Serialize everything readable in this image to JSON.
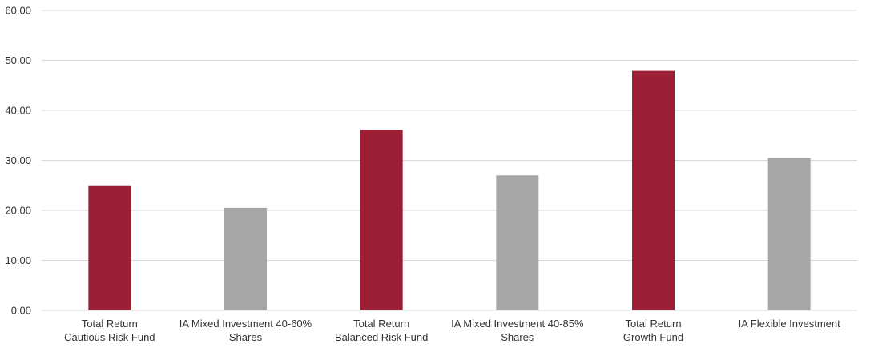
{
  "chart_data": {
    "type": "bar",
    "title": "",
    "xlabel": "",
    "ylabel": "",
    "ylim": [
      0,
      60
    ],
    "yticks": [
      "0.00",
      "10.00",
      "20.00",
      "30.00",
      "40.00",
      "50.00",
      "60.00"
    ],
    "grid": true,
    "legend": "none",
    "categories": [
      [
        "Total Return",
        "Cautious Risk Fund"
      ],
      [
        "IA Mixed Investment 40-60%",
        "Shares"
      ],
      [
        "Total Return",
        "Balanced Risk Fund"
      ],
      [
        "IA Mixed Investment 40-85%",
        "Shares"
      ],
      [
        "Total Return",
        "Growth Fund"
      ],
      [
        "IA Flexible Investment"
      ]
    ],
    "values": [
      25.0,
      20.5,
      36.1,
      27.0,
      47.9,
      30.5
    ],
    "bar_colors": [
      "#9b1f35",
      "#a6a6a6",
      "#9b1f35",
      "#a6a6a6",
      "#9b1f35",
      "#a6a6a6"
    ]
  }
}
